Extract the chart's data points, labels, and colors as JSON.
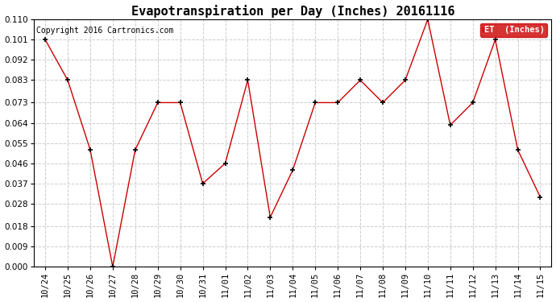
{
  "title": "Evapotranspiration per Day (Inches) 20161116",
  "copyright": "Copyright 2016 Cartronics.com",
  "legend_label": "ET  (Inches)",
  "x_labels": [
    "10/24",
    "10/25",
    "10/26",
    "10/27",
    "10/28",
    "10/29",
    "10/30",
    "10/31",
    "11/01",
    "11/02",
    "11/03",
    "11/04",
    "11/05",
    "11/06",
    "11/07",
    "11/08",
    "11/09",
    "11/10",
    "11/11",
    "11/12",
    "11/13",
    "11/14",
    "11/15"
  ],
  "y_values": [
    0.101,
    0.083,
    0.052,
    0.0,
    0.052,
    0.073,
    0.073,
    0.037,
    0.046,
    0.083,
    0.022,
    0.043,
    0.073,
    0.073,
    0.083,
    0.073,
    0.083,
    0.11,
    0.063,
    0.073,
    0.101,
    0.052,
    0.031
  ],
  "line_color": "#cc0000",
  "marker_color": "#000000",
  "plot_bg_color": "#ffffff",
  "fig_bg_color": "#ffffff",
  "grid_color": "#cccccc",
  "ylim": [
    0.0,
    0.11
  ],
  "yticks": [
    0.0,
    0.009,
    0.018,
    0.028,
    0.037,
    0.046,
    0.055,
    0.064,
    0.073,
    0.083,
    0.092,
    0.101,
    0.11
  ],
  "title_fontsize": 11,
  "tick_fontsize": 7.5,
  "copyright_fontsize": 7,
  "legend_bg": "#cc0000",
  "legend_text_color": "#ffffff",
  "legend_fontsize": 7.5
}
